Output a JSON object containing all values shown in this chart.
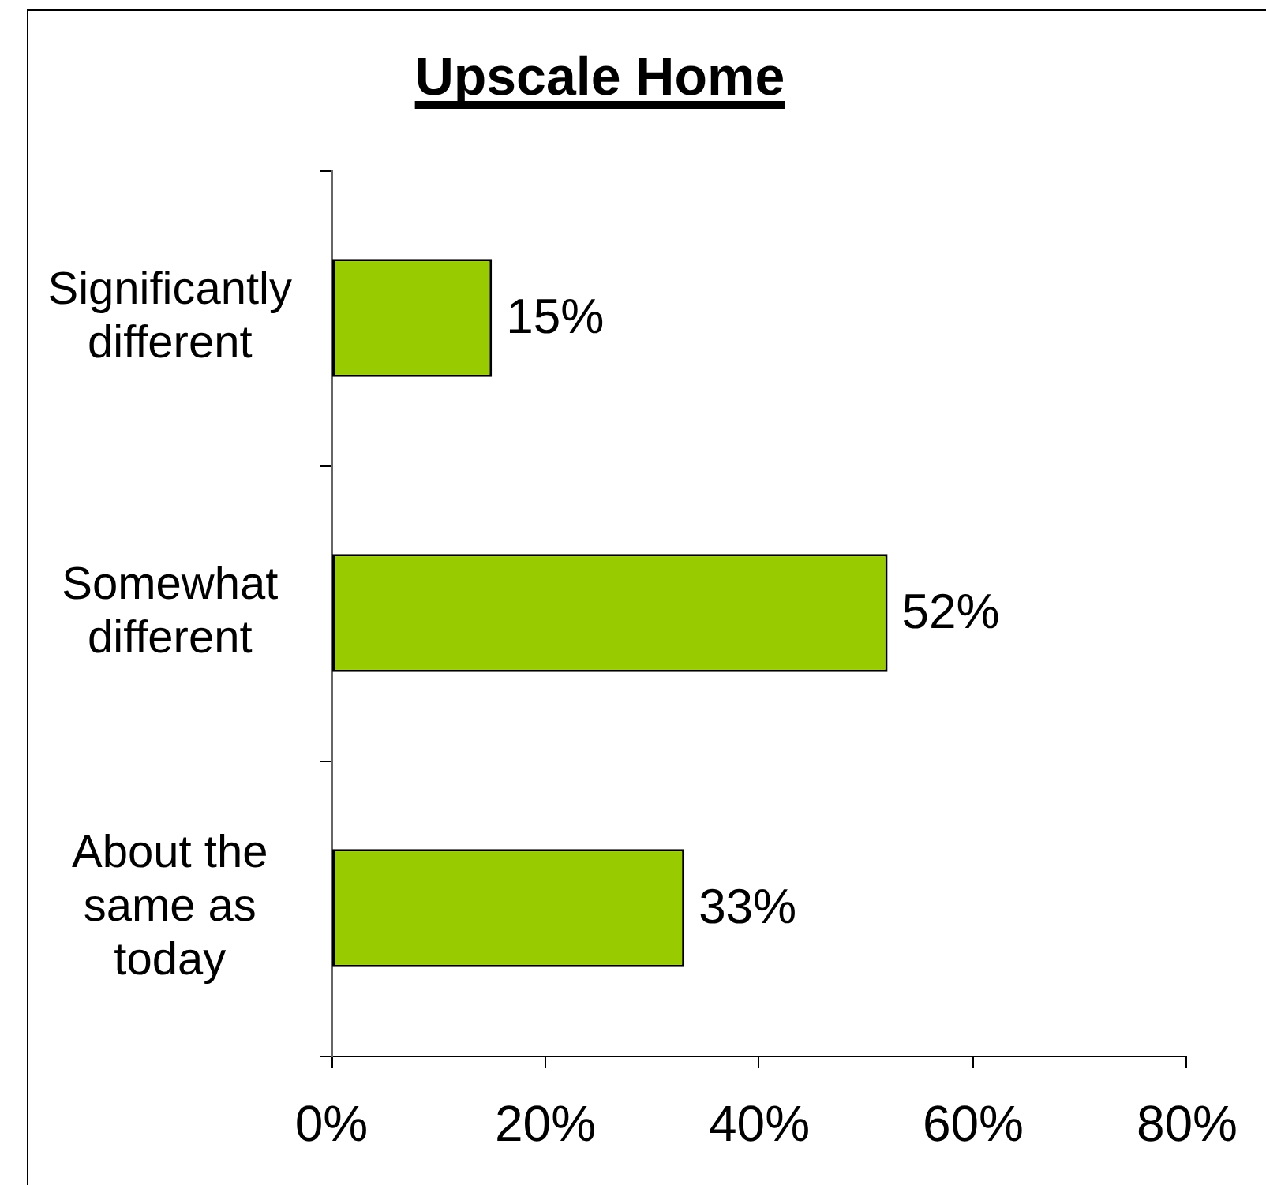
{
  "chart_data": {
    "type": "bar",
    "orientation": "horizontal",
    "title": "Upscale Home",
    "categories": [
      "Significantly different",
      "Somewhat different",
      "About the same as today"
    ],
    "values": [
      15,
      52,
      33
    ],
    "color": "#99cc00",
    "value_labels": [
      "15%",
      "52%",
      "33%"
    ],
    "xlim": [
      0,
      80
    ],
    "xticks": [
      {
        "value": 0,
        "label": "0%"
      },
      {
        "value": 20,
        "label": "20%"
      },
      {
        "value": 40,
        "label": "40%"
      },
      {
        "value": 60,
        "label": "60%"
      },
      {
        "value": 80,
        "label": "80%"
      }
    ],
    "grid": false,
    "legend": false
  }
}
